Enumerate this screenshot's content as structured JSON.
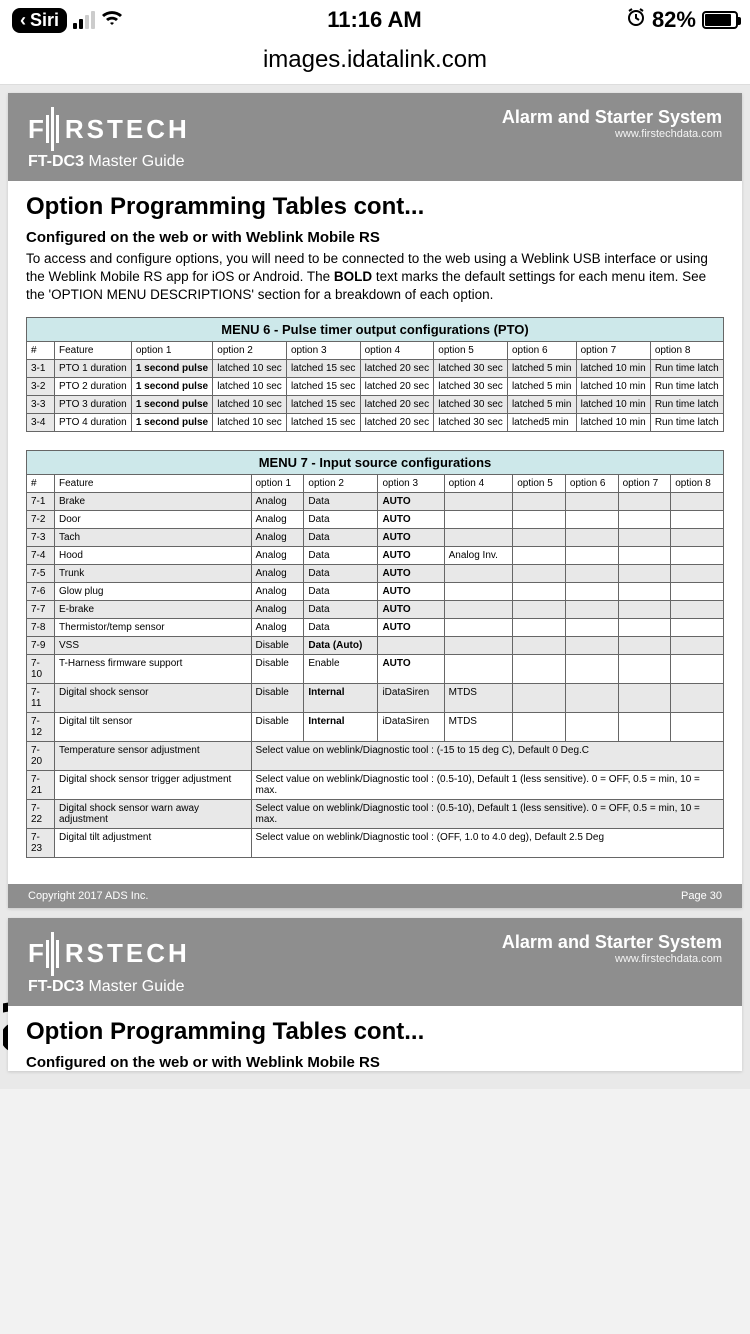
{
  "status": {
    "siri": "Siri",
    "time": "11:16 AM",
    "battery_pct": "82%"
  },
  "url": "images.idatalink.com",
  "header": {
    "brand": "F  RSTECH",
    "product": "FT-DC3",
    "product_sub": "Master Guide",
    "title": "Alarm and Starter System",
    "site": "www.firstechdata.com"
  },
  "doc": {
    "h1": "Option Programming Tables cont...",
    "h2": "Configured on the web or with Weblink Mobile RS",
    "intro_a": "To access and configure options, you will need to be connected to the web using a Weblink USB interface or using the Weblink Mobile RS app for iOS or Android.  The ",
    "intro_bold": "BOLD",
    "intro_b": " text marks the default settings for each menu item. See the 'OPTION MENU DESCRIPTIONS' section for a breakdown of each option."
  },
  "menu6": {
    "title": "MENU 6 - Pulse timer output configurations (PTO)",
    "cols": [
      "#",
      "Feature",
      "option 1",
      "option 2",
      "option 3",
      "option 4",
      "option 5",
      "option 6",
      "option 7",
      "option 8"
    ],
    "rows": [
      {
        "n": "3-1",
        "f": "PTO 1 duration",
        "o": [
          "1 second pulse",
          "latched 10 sec",
          "latched 15 sec",
          "latched 20 sec",
          "latched 30 sec",
          "latched 5 min",
          "latched 10 min",
          "Run time latch"
        ]
      },
      {
        "n": "3-2",
        "f": "PTO 2 duration",
        "o": [
          "1 second pulse",
          "latched 10 sec",
          "latched 15 sec",
          "latched 20 sec",
          "latched 30 sec",
          "latched 5 min",
          "latched 10 min",
          "Run time latch"
        ]
      },
      {
        "n": "3-3",
        "f": "PTO 3 duration",
        "o": [
          "1 second pulse",
          "latched 10 sec",
          "latched 15 sec",
          "latched 20 sec",
          "latched 30 sec",
          "latched 5 min",
          "latched 10 min",
          "Run time latch"
        ]
      },
      {
        "n": "3-4",
        "f": "PTO 4 duration",
        "o": [
          "1 second pulse",
          "latched 10 sec",
          "latched 15 sec",
          "latched 20 sec",
          "latched 30 sec",
          "latched5 min",
          "latched 10 min",
          "Run time latch"
        ]
      }
    ]
  },
  "menu7": {
    "title": "MENU 7 - Input source configurations",
    "cols": [
      "#",
      "Feature",
      "option 1",
      "option 2",
      "option 3",
      "option 4",
      "option 5",
      "option 6",
      "option 7",
      "option 8"
    ],
    "rows": [
      {
        "n": "7-1",
        "f": "Brake",
        "o": [
          "Analog",
          "Data",
          "AUTO",
          "",
          "",
          "",
          "",
          ""
        ],
        "bold": [
          2
        ]
      },
      {
        "n": "7-2",
        "f": "Door",
        "o": [
          "Analog",
          "Data",
          "AUTO",
          "",
          "",
          "",
          "",
          ""
        ],
        "bold": [
          2
        ]
      },
      {
        "n": "7-3",
        "f": "Tach",
        "o": [
          "Analog",
          "Data",
          "AUTO",
          "",
          "",
          "",
          "",
          ""
        ],
        "bold": [
          2
        ]
      },
      {
        "n": "7-4",
        "f": "Hood",
        "o": [
          "Analog",
          "Data",
          "AUTO",
          "Analog Inv.",
          "",
          "",
          "",
          ""
        ],
        "bold": [
          2
        ]
      },
      {
        "n": "7-5",
        "f": "Trunk",
        "o": [
          "Analog",
          "Data",
          "AUTO",
          "",
          "",
          "",
          "",
          ""
        ],
        "bold": [
          2
        ]
      },
      {
        "n": "7-6",
        "f": "Glow plug",
        "o": [
          "Analog",
          "Data",
          "AUTO",
          "",
          "",
          "",
          "",
          ""
        ],
        "bold": [
          2
        ]
      },
      {
        "n": "7-7",
        "f": "E-brake",
        "o": [
          "Analog",
          "Data",
          "AUTO",
          "",
          "",
          "",
          "",
          ""
        ],
        "bold": [
          2
        ]
      },
      {
        "n": "7-8",
        "f": "Thermistor/temp sensor",
        "o": [
          "Analog",
          "Data",
          "AUTO",
          "",
          "",
          "",
          "",
          ""
        ],
        "bold": [
          2
        ]
      },
      {
        "n": "7-9",
        "f": "VSS",
        "o": [
          "Disable",
          "Data (Auto)",
          "",
          "",
          "",
          "",
          "",
          ""
        ],
        "bold": [
          1
        ]
      },
      {
        "n": "7-10",
        "f": "T-Harness firmware support",
        "o": [
          "Disable",
          "Enable",
          "AUTO",
          "",
          "",
          "",
          "",
          ""
        ],
        "bold": [
          2
        ]
      },
      {
        "n": "7-11",
        "f": "Digital shock sensor",
        "o": [
          "Disable",
          "Internal",
          "iDataSiren",
          "MTDS",
          "",
          "",
          "",
          ""
        ],
        "bold": [
          1
        ]
      },
      {
        "n": "7-12",
        "f": "Digital tilt sensor",
        "o": [
          "Disable",
          "Internal",
          "iDataSiren",
          "MTDS",
          "",
          "",
          "",
          ""
        ],
        "bold": [
          1
        ]
      }
    ],
    "span_rows": [
      {
        "n": "7-20",
        "f": "Temperature sensor adjustment",
        "note": "Select value on weblink/Diagnostic tool : (-15 to 15 deg C), Default 0 Deg.C"
      },
      {
        "n": "7-21",
        "f": "Digital shock sensor trigger adjustment",
        "note": "Select value on weblink/Diagnostic tool : (0.5-10), Default 1 (less sensitive). 0 = OFF, 0.5 = min, 10 = max."
      },
      {
        "n": "7-22",
        "f": "Digital shock sensor warn away adjustment",
        "note": "Select value on weblink/Diagnostic tool : (0.5-10), Default 1 (less sensitive). 0 = OFF, 0.5 = min, 10 = max."
      },
      {
        "n": "7-23",
        "f": "Digital tilt adjustment",
        "note": "Select value on weblink/Diagnostic tool : (OFF, 1.0 to 4.0 deg), Default 2.5 Deg"
      }
    ]
  },
  "footer": {
    "copy": "Copyright 2017 ADS Inc.",
    "page": "Page 30"
  },
  "colors": {
    "menu_header_bg": "#cde8ea",
    "page_header_bg": "#8e8e8e",
    "row_shade": "#e8e8e8",
    "border": "#666666",
    "annotation": "#000000"
  }
}
